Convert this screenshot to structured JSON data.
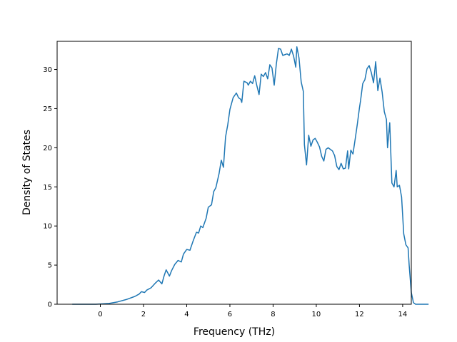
{
  "chart_data": {
    "type": "line",
    "xlabel": "Frequency (THz)",
    "ylabel": "Density of States",
    "xlim": [
      -2.0,
      14.4
    ],
    "ylim": [
      0,
      33.6
    ],
    "xticks": [
      0,
      2,
      4,
      6,
      8,
      10,
      12,
      14
    ],
    "yticks": [
      0,
      5,
      10,
      15,
      20,
      25,
      30
    ],
    "grid": false,
    "line_color": "#1f77b4",
    "series": [
      {
        "points": [
          [
            -1.3,
            0.0
          ],
          [
            -0.2,
            0.0
          ],
          [
            0.4,
            0.1
          ],
          [
            0.8,
            0.3
          ],
          [
            1.2,
            0.6
          ],
          [
            1.6,
            1.0
          ],
          [
            1.8,
            1.3
          ],
          [
            1.9,
            1.6
          ],
          [
            2.05,
            1.5
          ],
          [
            2.15,
            1.8
          ],
          [
            2.35,
            2.1
          ],
          [
            2.55,
            2.7
          ],
          [
            2.7,
            3.1
          ],
          [
            2.85,
            2.6
          ],
          [
            2.95,
            3.6
          ],
          [
            3.05,
            4.4
          ],
          [
            3.2,
            3.6
          ],
          [
            3.3,
            4.3
          ],
          [
            3.45,
            5.1
          ],
          [
            3.6,
            5.6
          ],
          [
            3.75,
            5.4
          ],
          [
            3.85,
            6.4
          ],
          [
            4.0,
            7.0
          ],
          [
            4.15,
            6.9
          ],
          [
            4.3,
            8.1
          ],
          [
            4.45,
            9.2
          ],
          [
            4.55,
            9.1
          ],
          [
            4.65,
            10.0
          ],
          [
            4.75,
            9.8
          ],
          [
            4.9,
            11.0
          ],
          [
            5.0,
            12.4
          ],
          [
            5.15,
            12.7
          ],
          [
            5.25,
            14.4
          ],
          [
            5.35,
            14.9
          ],
          [
            5.5,
            16.7
          ],
          [
            5.6,
            18.4
          ],
          [
            5.7,
            17.5
          ],
          [
            5.8,
            21.4
          ],
          [
            5.9,
            22.9
          ],
          [
            6.0,
            24.9
          ],
          [
            6.15,
            26.4
          ],
          [
            6.3,
            27.0
          ],
          [
            6.4,
            26.4
          ],
          [
            6.5,
            26.2
          ],
          [
            6.55,
            25.8
          ],
          [
            6.65,
            28.5
          ],
          [
            6.8,
            28.3
          ],
          [
            6.85,
            28.0
          ],
          [
            6.95,
            28.5
          ],
          [
            7.05,
            28.2
          ],
          [
            7.15,
            29.2
          ],
          [
            7.25,
            27.9
          ],
          [
            7.35,
            26.8
          ],
          [
            7.45,
            29.4
          ],
          [
            7.55,
            29.1
          ],
          [
            7.65,
            29.6
          ],
          [
            7.75,
            28.8
          ],
          [
            7.85,
            30.6
          ],
          [
            7.95,
            30.2
          ],
          [
            8.05,
            28.0
          ],
          [
            8.15,
            30.7
          ],
          [
            8.25,
            32.7
          ],
          [
            8.35,
            32.6
          ],
          [
            8.45,
            31.8
          ],
          [
            8.55,
            31.9
          ],
          [
            8.65,
            32.0
          ],
          [
            8.75,
            31.8
          ],
          [
            8.85,
            32.6
          ],
          [
            8.95,
            31.7
          ],
          [
            9.05,
            30.3
          ],
          [
            9.1,
            32.9
          ],
          [
            9.2,
            31.5
          ],
          [
            9.3,
            28.4
          ],
          [
            9.4,
            27.2
          ],
          [
            9.45,
            20.4
          ],
          [
            9.55,
            17.8
          ],
          [
            9.65,
            21.6
          ],
          [
            9.75,
            20.2
          ],
          [
            9.85,
            21.0
          ],
          [
            9.95,
            21.2
          ],
          [
            10.05,
            20.7
          ],
          [
            10.15,
            20.1
          ],
          [
            10.25,
            18.9
          ],
          [
            10.35,
            18.3
          ],
          [
            10.45,
            19.8
          ],
          [
            10.55,
            20.0
          ],
          [
            10.65,
            19.8
          ],
          [
            10.75,
            19.6
          ],
          [
            10.85,
            19.0
          ],
          [
            10.95,
            17.6
          ],
          [
            11.05,
            17.2
          ],
          [
            11.15,
            18.0
          ],
          [
            11.25,
            17.3
          ],
          [
            11.35,
            17.4
          ],
          [
            11.45,
            19.6
          ],
          [
            11.5,
            17.3
          ],
          [
            11.6,
            19.7
          ],
          [
            11.7,
            19.2
          ],
          [
            11.8,
            21.1
          ],
          [
            11.9,
            23.0
          ],
          [
            12.0,
            25.1
          ],
          [
            12.05,
            26.0
          ],
          [
            12.15,
            28.2
          ],
          [
            12.25,
            28.7
          ],
          [
            12.35,
            30.1
          ],
          [
            12.45,
            30.5
          ],
          [
            12.55,
            29.6
          ],
          [
            12.65,
            28.3
          ],
          [
            12.75,
            31.0
          ],
          [
            12.85,
            27.3
          ],
          [
            12.95,
            28.9
          ],
          [
            13.05,
            27.1
          ],
          [
            13.15,
            24.6
          ],
          [
            13.25,
            23.6
          ],
          [
            13.3,
            20.0
          ],
          [
            13.4,
            23.2
          ],
          [
            13.5,
            15.5
          ],
          [
            13.6,
            15.0
          ],
          [
            13.7,
            17.1
          ],
          [
            13.75,
            15.0
          ],
          [
            13.85,
            15.2
          ],
          [
            13.95,
            13.7
          ],
          [
            14.05,
            9.0
          ],
          [
            14.15,
            7.6
          ],
          [
            14.25,
            7.2
          ],
          [
            14.3,
            5.0
          ],
          [
            14.4,
            1.5
          ],
          [
            14.5,
            0.2
          ],
          [
            14.6,
            0.0
          ],
          [
            15.2,
            0.0
          ]
        ]
      }
    ]
  }
}
